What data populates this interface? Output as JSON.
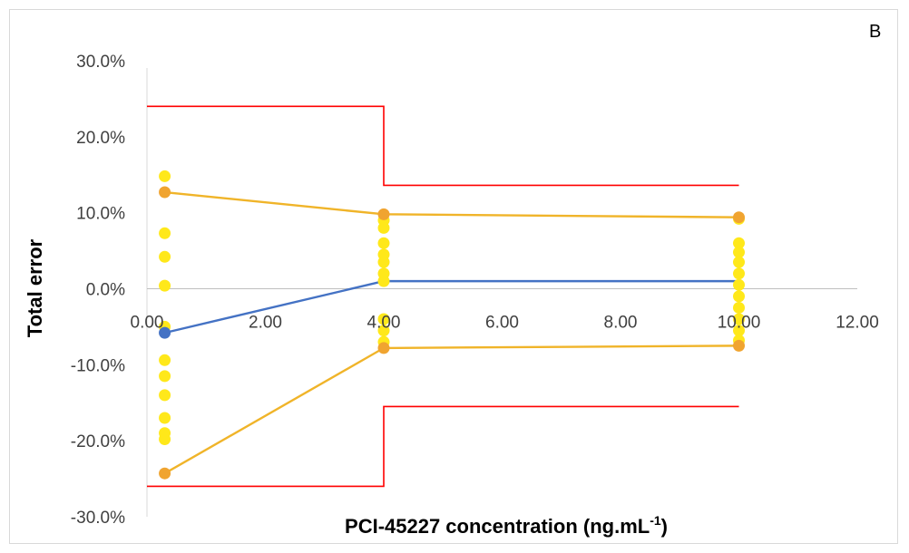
{
  "chart_data": {
    "type": "line",
    "panel_label": "B",
    "xlabel": "PCI-45227 concentration (ng.mL",
    "xlabel_superscript": "-1",
    "xlabel_suffix": ")",
    "ylabel": "Total error",
    "xlim": [
      0,
      12
    ],
    "ylim": [
      -0.3,
      0.3
    ],
    "x_ticks": [
      "0.00",
      "2.00",
      "4.00",
      "6.00",
      "8.00",
      "10.00",
      "12.00"
    ],
    "y_ticks": [
      "30.0%",
      "20.0%",
      "10.0%",
      "0.0%",
      "-10.0%",
      "-20.0%",
      "-30.0%"
    ],
    "series": [
      {
        "color": "#4472c4",
        "kind": "line",
        "markers": [
          0
        ],
        "points": [
          [
            0.3,
            -0.058
          ],
          [
            4.0,
            0.01
          ],
          [
            10.0,
            0.01
          ]
        ]
      },
      {
        "color": "#f0b429",
        "kind": "line",
        "markers": [
          0,
          1,
          2
        ],
        "points": [
          [
            0.3,
            0.127
          ],
          [
            4.0,
            0.098
          ],
          [
            10.0,
            0.094
          ]
        ]
      },
      {
        "color": "#f0b429",
        "kind": "line",
        "markers": [
          0,
          1,
          2
        ],
        "points": [
          [
            0.3,
            -0.243
          ],
          [
            4.0,
            -0.078
          ],
          [
            10.0,
            -0.075
          ]
        ]
      },
      {
        "color": "#ff0000",
        "kind": "step",
        "points": [
          [
            0.0,
            0.24
          ],
          [
            4.0,
            0.24
          ],
          [
            4.0,
            0.136
          ],
          [
            10.0,
            0.136
          ]
        ]
      },
      {
        "color": "#ff0000",
        "kind": "step",
        "points": [
          [
            0.0,
            -0.26
          ],
          [
            4.0,
            -0.26
          ],
          [
            4.0,
            -0.155
          ],
          [
            10.0,
            -0.155
          ]
        ]
      },
      {
        "color": "#ffe81a",
        "kind": "scatter",
        "points": [
          [
            0.3,
            0.148
          ],
          [
            0.3,
            0.073
          ],
          [
            0.3,
            0.042
          ],
          [
            0.3,
            0.004
          ],
          [
            0.3,
            -0.05
          ],
          [
            0.3,
            -0.094
          ],
          [
            0.3,
            -0.115
          ],
          [
            0.3,
            -0.14
          ],
          [
            0.3,
            -0.17
          ],
          [
            0.3,
            -0.19
          ],
          [
            0.3,
            -0.198
          ],
          [
            4.0,
            0.09
          ],
          [
            4.0,
            0.08
          ],
          [
            4.0,
            0.06
          ],
          [
            4.0,
            0.045
          ],
          [
            4.0,
            0.035
          ],
          [
            4.0,
            0.02
          ],
          [
            4.0,
            0.01
          ],
          [
            4.0,
            -0.04
          ],
          [
            4.0,
            -0.055
          ],
          [
            4.0,
            -0.07
          ],
          [
            10.0,
            0.092
          ],
          [
            10.0,
            0.06
          ],
          [
            10.0,
            0.048
          ],
          [
            10.0,
            0.035
          ],
          [
            10.0,
            0.02
          ],
          [
            10.0,
            0.005
          ],
          [
            10.0,
            -0.01
          ],
          [
            10.0,
            -0.025
          ],
          [
            10.0,
            -0.04
          ],
          [
            10.0,
            -0.055
          ],
          [
            10.0,
            -0.068
          ]
        ]
      }
    ]
  }
}
